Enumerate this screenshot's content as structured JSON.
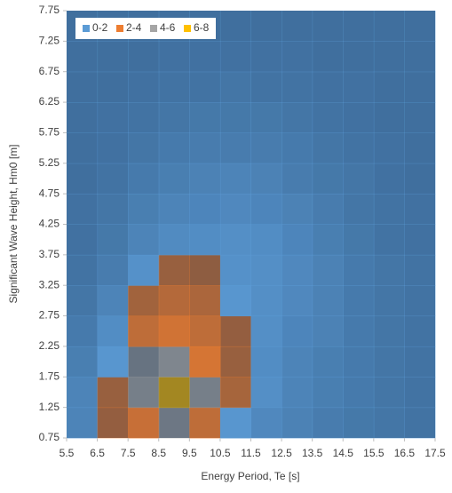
{
  "chart_data": {
    "type": "contour",
    "x_label": "Energy Period, Te [s]",
    "y_label": "Significant Wave Height, Hm0 [m]",
    "x": [
      6,
      7,
      8,
      9,
      10,
      11,
      12,
      13,
      14,
      15,
      16,
      17
    ],
    "y": [
      1.0,
      1.5,
      2.0,
      2.5,
      3.0,
      3.5,
      4.0,
      4.5,
      5.0,
      5.5,
      6.0,
      6.5,
      7.0,
      7.5
    ],
    "z": [
      [
        1.0,
        2.1,
        3.2,
        4.2,
        3.0,
        1.8,
        1.2,
        0.9,
        0.7,
        0.5,
        0.4,
        0.3
      ],
      [
        1.0,
        2.2,
        4.5,
        6.2,
        4.5,
        2.5,
        1.5,
        1.0,
        0.8,
        0.6,
        0.4,
        0.3
      ],
      [
        0.8,
        1.8,
        4.0,
        4.8,
        3.5,
        2.2,
        1.4,
        1.0,
        0.8,
        0.6,
        0.4,
        0.3
      ],
      [
        0.6,
        1.4,
        3.0,
        3.4,
        3.0,
        2.1,
        1.5,
        1.1,
        0.9,
        0.6,
        0.4,
        0.3
      ],
      [
        0.4,
        1.0,
        2.4,
        2.8,
        2.6,
        1.8,
        1.5,
        1.2,
        0.9,
        0.6,
        0.4,
        0.3
      ],
      [
        0.3,
        0.7,
        1.6,
        2.2,
        2.0,
        1.6,
        1.5,
        1.2,
        0.9,
        0.6,
        0.4,
        0.3
      ],
      [
        0.2,
        0.5,
        1.0,
        1.3,
        1.4,
        1.5,
        1.4,
        1.1,
        0.8,
        0.5,
        0.3,
        0.2
      ],
      [
        0.2,
        0.4,
        0.8,
        1.0,
        1.1,
        1.2,
        1.1,
        0.9,
        0.7,
        0.4,
        0.3,
        0.2
      ],
      [
        0.1,
        0.3,
        0.6,
        0.8,
        0.9,
        1.0,
        0.9,
        0.7,
        0.5,
        0.4,
        0.2,
        0.1
      ],
      [
        0.1,
        0.2,
        0.4,
        0.6,
        0.7,
        0.7,
        0.7,
        0.6,
        0.4,
        0.3,
        0.2,
        0.1
      ],
      [
        0.1,
        0.2,
        0.3,
        0.4,
        0.5,
        0.5,
        0.5,
        0.4,
        0.3,
        0.2,
        0.1,
        0.1
      ],
      [
        0.1,
        0.1,
        0.2,
        0.3,
        0.3,
        0.4,
        0.3,
        0.3,
        0.2,
        0.2,
        0.1,
        0.1
      ],
      [
        0.1,
        0.1,
        0.1,
        0.2,
        0.2,
        0.2,
        0.2,
        0.2,
        0.1,
        0.1,
        0.1,
        0.1
      ],
      [
        0.1,
        0.1,
        0.1,
        0.1,
        0.1,
        0.1,
        0.1,
        0.1,
        0.1,
        0.1,
        0.1,
        0.1
      ]
    ],
    "levels": [
      {
        "name": "0-2",
        "min": 0,
        "max": 2,
        "color": "#5b9bd5"
      },
      {
        "name": "2-4",
        "min": 2,
        "max": 4,
        "color": "#ed7d31"
      },
      {
        "name": "4-6",
        "min": 4,
        "max": 6,
        "color": "#a5a5a5"
      },
      {
        "name": "6-8",
        "min": 6,
        "max": 8,
        "color": "#ffc000"
      }
    ],
    "xlim": [
      5.5,
      17.5
    ],
    "xticks": [
      5.5,
      6.5,
      7.5,
      8.5,
      9.5,
      10.5,
      11.5,
      12.5,
      13.5,
      14.5,
      15.5,
      16.5,
      17.5
    ],
    "ylim": [
      0.75,
      7.75
    ],
    "yticks": [
      0.75,
      1.25,
      1.75,
      2.25,
      2.75,
      3.25,
      3.75,
      4.25,
      4.75,
      5.25,
      5.75,
      6.25,
      6.75,
      7.25,
      7.75
    ],
    "legend": "top-left"
  }
}
